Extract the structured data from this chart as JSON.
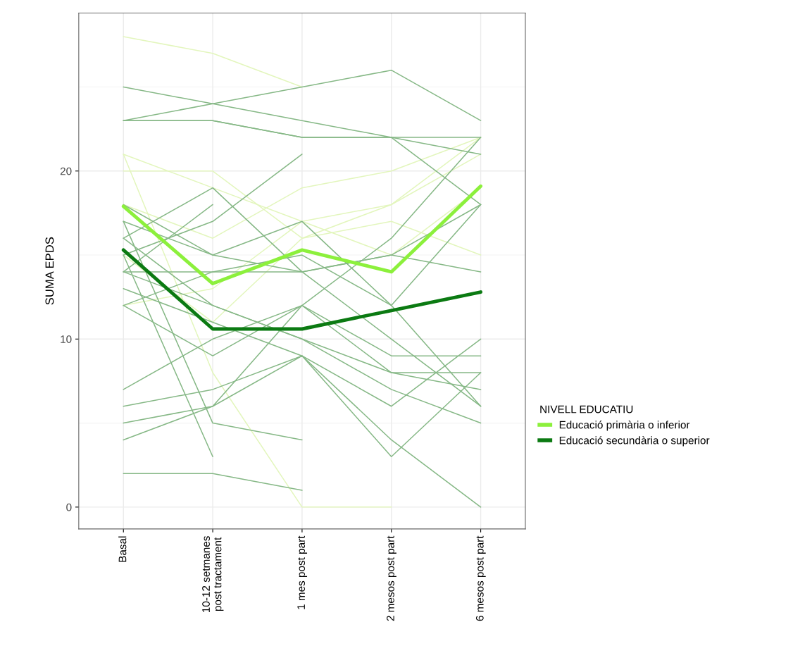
{
  "chart_data": {
    "type": "line",
    "ylabel": "SUMA EPDS",
    "legend_title": "NIVELL EDUCATIU",
    "legend": "right",
    "grid": true,
    "categories": [
      "Basal",
      "10-12 setmanes\npost tractament",
      "1 mes post part",
      "2 mesos post part",
      "6 mesos post part"
    ],
    "ylim": [
      -1.3,
      29.4
    ],
    "yticks": [
      0,
      10,
      20
    ],
    "series": [
      {
        "color": "#e3f6bd",
        "values": [
          28,
          27,
          25,
          null,
          null
        ]
      },
      {
        "color": "#e3f6bd",
        "values": [
          20,
          20,
          16,
          18,
          22
        ]
      },
      {
        "color": "#e3f6bd",
        "values": [
          21,
          8,
          0,
          0,
          null
        ]
      },
      {
        "color": "#e3f6bd",
        "values": [
          18,
          16,
          19,
          20,
          22
        ]
      },
      {
        "color": "#e3f6bd",
        "values": [
          15,
          11,
          16,
          17,
          15
        ]
      },
      {
        "color": "#e3f6bd",
        "values": [
          21,
          19,
          17,
          15,
          19
        ]
      },
      {
        "color": "#e3f6bd",
        "values": [
          12,
          13,
          17,
          18,
          21
        ]
      },
      {
        "color": "#86b886",
        "values": [
          23,
          24,
          25,
          26,
          23
        ]
      },
      {
        "color": "#86b886",
        "values": [
          25,
          24,
          23,
          22,
          21
        ]
      },
      {
        "color": "#86b886",
        "values": [
          23,
          23,
          22,
          22,
          22
        ]
      },
      {
        "color": "#86b886",
        "values": [
          23,
          23,
          22,
          22,
          18
        ]
      },
      {
        "color": "#86b886",
        "values": [
          16,
          19,
          14,
          10,
          6
        ]
      },
      {
        "color": "#86b886",
        "values": [
          14,
          18,
          null,
          null,
          null
        ]
      },
      {
        "color": "#86b886",
        "values": [
          15,
          17,
          21,
          null,
          null
        ]
      },
      {
        "color": "#86b886",
        "values": [
          17,
          15,
          17,
          12,
          18
        ]
      },
      {
        "color": "#86b886",
        "values": [
          18,
          15,
          14,
          15,
          18
        ]
      },
      {
        "color": "#86b886",
        "values": [
          14,
          14,
          14,
          15,
          14
        ]
      },
      {
        "color": "#86b886",
        "values": [
          12,
          14,
          15,
          12,
          6
        ]
      },
      {
        "color": "#86b886",
        "values": [
          16,
          12,
          10,
          8,
          8
        ]
      },
      {
        "color": "#86b886",
        "values": [
          14,
          12,
          10,
          7,
          5
        ]
      },
      {
        "color": "#86b886",
        "values": [
          13,
          11,
          9,
          6,
          10
        ]
      },
      {
        "color": "#86b886",
        "values": [
          12,
          9,
          12,
          8,
          7
        ]
      },
      {
        "color": "#86b886",
        "values": [
          7,
          10,
          12,
          16,
          22
        ]
      },
      {
        "color": "#86b886",
        "values": [
          6,
          7,
          9,
          3,
          8
        ]
      },
      {
        "color": "#86b886",
        "values": [
          4,
          6,
          9,
          4,
          0
        ]
      },
      {
        "color": "#86b886",
        "values": [
          5,
          6,
          12,
          9,
          9
        ]
      },
      {
        "color": "#86b886",
        "values": [
          2,
          2,
          1,
          null,
          null
        ]
      },
      {
        "color": "#86b886",
        "values": [
          17,
          5,
          4,
          null,
          null
        ]
      },
      {
        "color": "#86b886",
        "values": [
          15,
          3,
          null,
          null,
          null
        ]
      },
      {
        "name": "Educació primària o inferior",
        "color": "#8cf03c",
        "values": [
          17.9,
          13.3,
          15.3,
          14.0,
          19.1
        ]
      },
      {
        "name": "Educació secundària o superior",
        "color": "#0b7a12",
        "values": [
          15.3,
          10.6,
          10.6,
          11.7,
          12.8
        ]
      }
    ]
  }
}
